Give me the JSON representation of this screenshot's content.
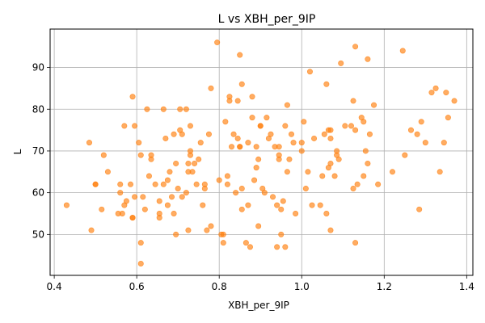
{
  "chart_data": {
    "type": "scatter",
    "title": "L vs XBH_per_9IP",
    "xlabel": "XBH_per_9IP",
    "ylabel": "L",
    "xlim": [
      0.39,
      1.415
    ],
    "ylim": [
      40.2,
      99.2
    ],
    "xticks": [
      0.4,
      0.6,
      0.8,
      1.0,
      1.2,
      1.4
    ],
    "xtick_labels": [
      "0.4",
      "0.6",
      "0.8",
      "1.0",
      "1.2",
      "1.4"
    ],
    "yticks": [
      50,
      60,
      70,
      80,
      90
    ],
    "ytick_labels": [
      "50",
      "60",
      "70",
      "80",
      "90"
    ],
    "grid": true,
    "marker_color": "#ff7f0e",
    "series": [
      {
        "points": [
          [
            0.43,
            57
          ],
          [
            0.485,
            72
          ],
          [
            0.49,
            51
          ],
          [
            0.5,
            62
          ],
          [
            0.5,
            62
          ],
          [
            0.515,
            56
          ],
          [
            0.52,
            69
          ],
          [
            0.53,
            65
          ],
          [
            0.555,
            55
          ],
          [
            0.56,
            60
          ],
          [
            0.56,
            62
          ],
          [
            0.565,
            55
          ],
          [
            0.57,
            76
          ],
          [
            0.57,
            57
          ],
          [
            0.575,
            58
          ],
          [
            0.585,
            62
          ],
          [
            0.59,
            83
          ],
          [
            0.59,
            54
          ],
          [
            0.59,
            54
          ],
          [
            0.595,
            76
          ],
          [
            0.595,
            59
          ],
          [
            0.605,
            72
          ],
          [
            0.61,
            69
          ],
          [
            0.61,
            48
          ],
          [
            0.61,
            43
          ],
          [
            0.615,
            59
          ],
          [
            0.62,
            56
          ],
          [
            0.625,
            80
          ],
          [
            0.63,
            64
          ],
          [
            0.635,
            69
          ],
          [
            0.635,
            68
          ],
          [
            0.645,
            62
          ],
          [
            0.655,
            58
          ],
          [
            0.655,
            54
          ],
          [
            0.655,
            55
          ],
          [
            0.665,
            80
          ],
          [
            0.665,
            62
          ],
          [
            0.67,
            73
          ],
          [
            0.675,
            57
          ],
          [
            0.675,
            63
          ],
          [
            0.68,
            65
          ],
          [
            0.685,
            59
          ],
          [
            0.69,
            55
          ],
          [
            0.69,
            74
          ],
          [
            0.695,
            50
          ],
          [
            0.695,
            67
          ],
          [
            0.7,
            61
          ],
          [
            0.705,
            75
          ],
          [
            0.705,
            80
          ],
          [
            0.71,
            59
          ],
          [
            0.71,
            74
          ],
          [
            0.72,
            80
          ],
          [
            0.72,
            60
          ],
          [
            0.725,
            67
          ],
          [
            0.725,
            65
          ],
          [
            0.725,
            51
          ],
          [
            0.73,
            76
          ],
          [
            0.73,
            69
          ],
          [
            0.73,
            70
          ],
          [
            0.735,
            65
          ],
          [
            0.74,
            67
          ],
          [
            0.745,
            62
          ],
          [
            0.75,
            68
          ],
          [
            0.755,
            72
          ],
          [
            0.76,
            57
          ],
          [
            0.765,
            62
          ],
          [
            0.765,
            61
          ],
          [
            0.77,
            51
          ],
          [
            0.775,
            74
          ],
          [
            0.78,
            52
          ],
          [
            0.78,
            85
          ],
          [
            0.795,
            96
          ],
          [
            0.8,
            63
          ],
          [
            0.805,
            50
          ],
          [
            0.81,
            48
          ],
          [
            0.81,
            50
          ],
          [
            0.815,
            77
          ],
          [
            0.82,
            64
          ],
          [
            0.82,
            62
          ],
          [
            0.825,
            82
          ],
          [
            0.825,
            83
          ],
          [
            0.83,
            71
          ],
          [
            0.835,
            74
          ],
          [
            0.84,
            60
          ],
          [
            0.845,
            82
          ],
          [
            0.845,
            73
          ],
          [
            0.85,
            93
          ],
          [
            0.85,
            71
          ],
          [
            0.85,
            71
          ],
          [
            0.855,
            86
          ],
          [
            0.855,
            61
          ],
          [
            0.855,
            56
          ],
          [
            0.865,
            48
          ],
          [
            0.87,
            72
          ],
          [
            0.87,
            57
          ],
          [
            0.875,
            47
          ],
          [
            0.88,
            83
          ],
          [
            0.88,
            78
          ],
          [
            0.885,
            63
          ],
          [
            0.89,
            66
          ],
          [
            0.89,
            71
          ],
          [
            0.895,
            68
          ],
          [
            0.895,
            52
          ],
          [
            0.9,
            76
          ],
          [
            0.9,
            76
          ],
          [
            0.905,
            61
          ],
          [
            0.91,
            60
          ],
          [
            0.915,
            78
          ],
          [
            0.92,
            73
          ],
          [
            0.925,
            74
          ],
          [
            0.93,
            59
          ],
          [
            0.935,
            71
          ],
          [
            0.94,
            57
          ],
          [
            0.94,
            47
          ],
          [
            0.945,
            68
          ],
          [
            0.945,
            71
          ],
          [
            0.945,
            69
          ],
          [
            0.95,
            50
          ],
          [
            0.95,
            56
          ],
          [
            0.955,
            58
          ],
          [
            0.96,
            76
          ],
          [
            0.96,
            47
          ],
          [
            0.965,
            81
          ],
          [
            0.965,
            65
          ],
          [
            0.97,
            68
          ],
          [
            0.975,
            74
          ],
          [
            0.98,
            72
          ],
          [
            0.985,
            55
          ],
          [
            1.0,
            70
          ],
          [
            1.0,
            72
          ],
          [
            1.005,
            77
          ],
          [
            1.01,
            61
          ],
          [
            1.015,
            65
          ],
          [
            1.02,
            89
          ],
          [
            1.025,
            57
          ],
          [
            1.03,
            73
          ],
          [
            1.045,
            57
          ],
          [
            1.05,
            64
          ],
          [
            1.055,
            74
          ],
          [
            1.06,
            86
          ],
          [
            1.06,
            55
          ],
          [
            1.065,
            66
          ],
          [
            1.065,
            75
          ],
          [
            1.07,
            67
          ],
          [
            1.07,
            75
          ],
          [
            1.07,
            73
          ],
          [
            1.07,
            51
          ],
          [
            1.08,
            64
          ],
          [
            1.085,
            70
          ],
          [
            1.085,
            69
          ],
          [
            1.09,
            68
          ],
          [
            1.095,
            91
          ],
          [
            1.105,
            76
          ],
          [
            1.12,
            76
          ],
          [
            1.125,
            82
          ],
          [
            1.125,
            61
          ],
          [
            1.13,
            95
          ],
          [
            1.13,
            75
          ],
          [
            1.13,
            48
          ],
          [
            1.135,
            62
          ],
          [
            1.145,
            78
          ],
          [
            1.15,
            64
          ],
          [
            1.15,
            77
          ],
          [
            1.155,
            70
          ],
          [
            1.16,
            92
          ],
          [
            1.16,
            67
          ],
          [
            1.165,
            74
          ],
          [
            1.175,
            81
          ],
          [
            1.185,
            62
          ],
          [
            1.22,
            65
          ],
          [
            1.245,
            94
          ],
          [
            1.25,
            69
          ],
          [
            1.265,
            75
          ],
          [
            1.28,
            74
          ],
          [
            1.285,
            56
          ],
          [
            1.29,
            77
          ],
          [
            1.3,
            72
          ],
          [
            1.315,
            84
          ],
          [
            1.325,
            85
          ],
          [
            1.335,
            65
          ],
          [
            1.345,
            72
          ],
          [
            1.35,
            84
          ],
          [
            1.355,
            78
          ],
          [
            1.37,
            82
          ]
        ]
      }
    ]
  }
}
